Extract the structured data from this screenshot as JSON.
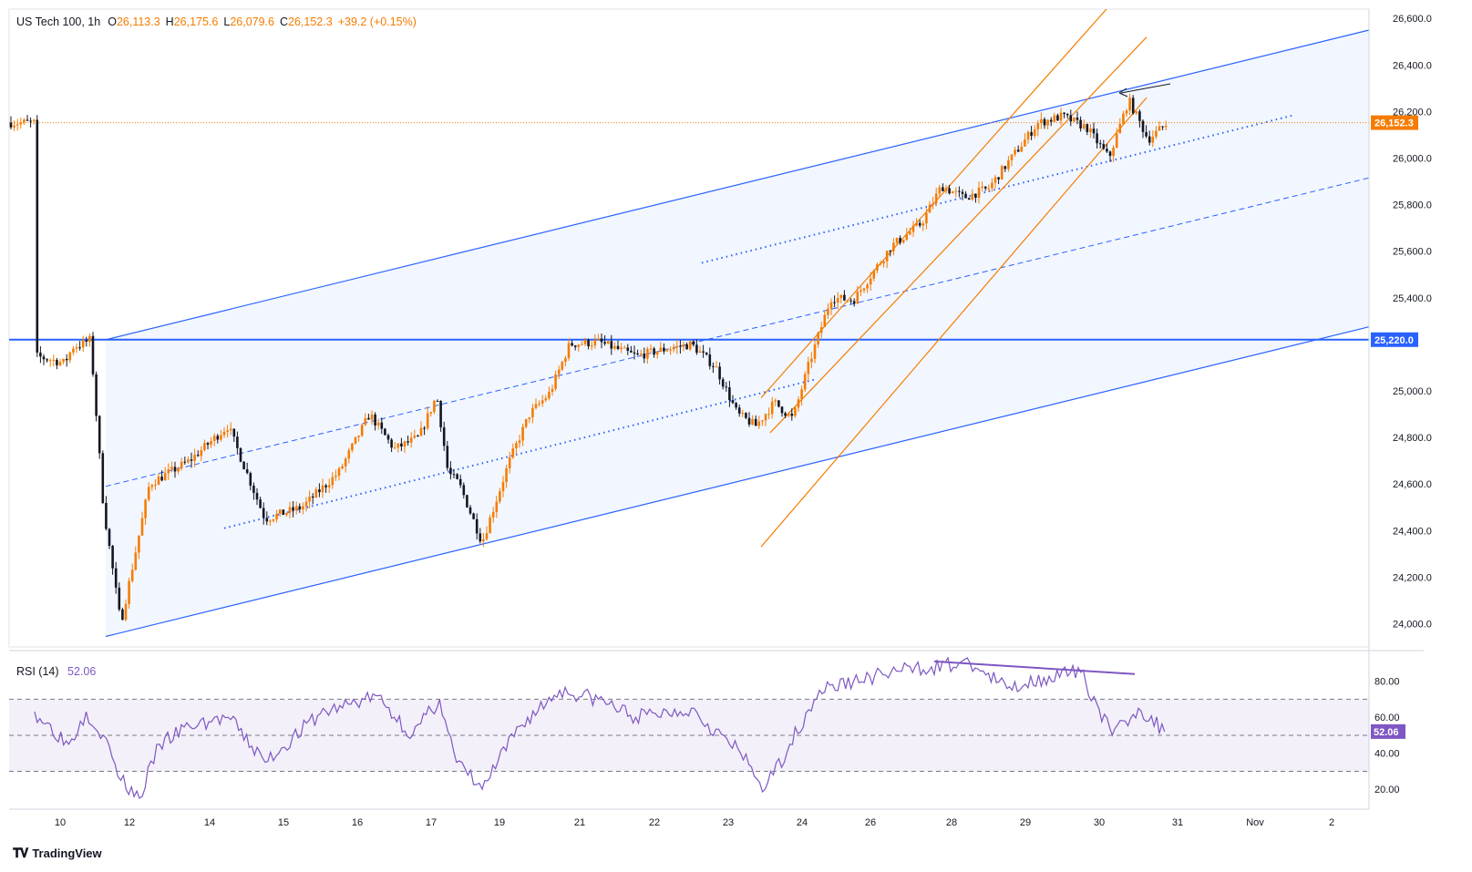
{
  "legend": {
    "symbol": "US Tech 100, 1h",
    "open_label": "O",
    "open": "26,113.3",
    "high_label": "H",
    "high": "26,175.6",
    "low_label": "L",
    "low": "26,079.6",
    "close_label": "C",
    "close": "26,152.3",
    "change": "+39.2 (+0.15%)"
  },
  "rsi": {
    "label": "RSI (14)",
    "value": "52.06"
  },
  "brand": {
    "name": "TradingView"
  },
  "colors": {
    "up": "#f57c00",
    "down": "#131722",
    "channel": "#2962ff",
    "orange_channel": "#f57c00",
    "rsi": "#7e57c2",
    "price_tag": "#f57c00",
    "level_tag": "#2962ff"
  },
  "chart_data": [
    {
      "type": "candlestick",
      "title": "US Tech 100, 1h",
      "x_tick_labels": [
        "10",
        "12",
        "14",
        "15",
        "16",
        "17",
        "19",
        "21",
        "22",
        "23",
        "24",
        "26",
        "28",
        "29",
        "30",
        "31",
        "Nov",
        "2"
      ],
      "y_tick_labels": [
        "26,600.0",
        "26,400.0",
        "26,200.0",
        "26,000.0",
        "25,800.0",
        "25,600.0",
        "25,400.0",
        "25,000.0",
        "24,800.0",
        "24,600.0",
        "24,400.0",
        "24,200.0",
        "24,000.0"
      ],
      "ylim": [
        23900,
        26640
      ],
      "last_price": 26152.3,
      "last_price_label": "26,152.3",
      "horizontal_level": 25220,
      "horizontal_level_label": "25,220.0",
      "path_keypoints": [
        {
          "x": "Oct 9",
          "y": 25150
        },
        {
          "x": "Oct 10",
          "y": 25120
        },
        {
          "x": "Oct 10",
          "y": 25190
        },
        {
          "x": "Oct 10",
          "y": 25200
        },
        {
          "x": "Oct 10",
          "y": 25220
        },
        {
          "x": "Oct 11",
          "y": 24500
        },
        {
          "x": "Oct 11",
          "y": 24000
        },
        {
          "x": "Oct 12",
          "y": 24600
        },
        {
          "x": "Oct 13",
          "y": 24700
        },
        {
          "x": "Oct 14",
          "y": 24850
        },
        {
          "x": "Oct 14",
          "y": 24450
        },
        {
          "x": "Oct 15",
          "y": 24500
        },
        {
          "x": "Oct 15",
          "y": 24650
        },
        {
          "x": "Oct 16",
          "y": 24900
        },
        {
          "x": "Oct 16",
          "y": 24750
        },
        {
          "x": "Oct 16",
          "y": 24800
        },
        {
          "x": "Oct 17",
          "y": 24980
        },
        {
          "x": "Oct 17",
          "y": 24650
        },
        {
          "x": "Oct 17",
          "y": 24600
        },
        {
          "x": "Oct 18",
          "y": 24350
        },
        {
          "x": "Oct 19",
          "y": 24700
        },
        {
          "x": "Oct 19",
          "y": 24900
        },
        {
          "x": "Oct 20",
          "y": 24990
        },
        {
          "x": "Oct 20",
          "y": 25200
        },
        {
          "x": "Oct 21",
          "y": 25210
        },
        {
          "x": "Oct 21",
          "y": 25150
        },
        {
          "x": "Oct 22",
          "y": 25180
        },
        {
          "x": "Oct 22",
          "y": 25200
        },
        {
          "x": "Oct 22",
          "y": 25100
        },
        {
          "x": "Oct 23",
          "y": 24900
        },
        {
          "x": "Oct 23",
          "y": 24850
        },
        {
          "x": "Oct 23",
          "y": 24950
        },
        {
          "x": "Oct 23",
          "y": 24880
        },
        {
          "x": "Oct 24",
          "y": 25100
        },
        {
          "x": "Oct 24",
          "y": 25250
        },
        {
          "x": "Oct 24",
          "y": 25400
        },
        {
          "x": "Oct 25",
          "y": 25390
        },
        {
          "x": "Oct 26",
          "y": 25620
        },
        {
          "x": "Oct 27",
          "y": 25720
        },
        {
          "x": "Oct 27",
          "y": 25880
        },
        {
          "x": "Oct 28",
          "y": 25830
        },
        {
          "x": "Oct 28",
          "y": 25870
        },
        {
          "x": "Oct 28",
          "y": 26010
        },
        {
          "x": "Oct 29",
          "y": 26150
        },
        {
          "x": "Oct 29",
          "y": 26180
        },
        {
          "x": "Oct 29",
          "y": 26130
        },
        {
          "x": "Oct 30",
          "y": 26000
        },
        {
          "x": "Oct 30",
          "y": 26250
        },
        {
          "x": "Oct 30",
          "y": 26080
        },
        {
          "x": "Oct 30",
          "y": 26152
        }
      ]
    },
    {
      "type": "line",
      "title": "RSI (14)",
      "current_value": 52.06,
      "current_value_label": "52.06",
      "y_tick_labels": [
        "80.00",
        "60.00",
        "40.00",
        "20.00"
      ],
      "ylim": [
        10,
        95
      ],
      "bands": [
        70,
        50,
        30
      ],
      "path_keypoints": [
        {
          "x": "Oct 9",
          "y": 63
        },
        {
          "x": "Oct 10",
          "y": 45
        },
        {
          "x": "Oct 10",
          "y": 63
        },
        {
          "x": "Oct 11",
          "y": 50
        },
        {
          "x": "Oct 11",
          "y": 25
        },
        {
          "x": "Oct 12",
          "y": 15
        },
        {
          "x": "Oct 12",
          "y": 45
        },
        {
          "x": "Oct 13",
          "y": 55
        },
        {
          "x": "Oct 14",
          "y": 60
        },
        {
          "x": "Oct 14",
          "y": 35
        },
        {
          "x": "Oct 15",
          "y": 62
        },
        {
          "x": "Oct 16",
          "y": 72
        },
        {
          "x": "Oct 16",
          "y": 50
        },
        {
          "x": "Oct 17",
          "y": 70
        },
        {
          "x": "Oct 17",
          "y": 35
        },
        {
          "x": "Oct 18",
          "y": 20
        },
        {
          "x": "Oct 19",
          "y": 55
        },
        {
          "x": "Oct 20",
          "y": 75
        },
        {
          "x": "Oct 21",
          "y": 70
        },
        {
          "x": "Oct 21",
          "y": 60
        },
        {
          "x": "Oct 22",
          "y": 65
        },
        {
          "x": "Oct 23",
          "y": 40
        },
        {
          "x": "Oct 23",
          "y": 20
        },
        {
          "x": "Oct 23",
          "y": 45
        },
        {
          "x": "Oct 24",
          "y": 75
        },
        {
          "x": "Oct 25",
          "y": 80
        },
        {
          "x": "Oct 26",
          "y": 85
        },
        {
          "x": "Oct 27",
          "y": 88
        },
        {
          "x": "Oct 28",
          "y": 90
        },
        {
          "x": "Oct 28",
          "y": 76
        },
        {
          "x": "Oct 29",
          "y": 82
        },
        {
          "x": "Oct 29",
          "y": 85
        },
        {
          "x": "Oct 30",
          "y": 50
        },
        {
          "x": "Oct 30",
          "y": 65
        },
        {
          "x": "Oct 30",
          "y": 52
        }
      ]
    }
  ]
}
